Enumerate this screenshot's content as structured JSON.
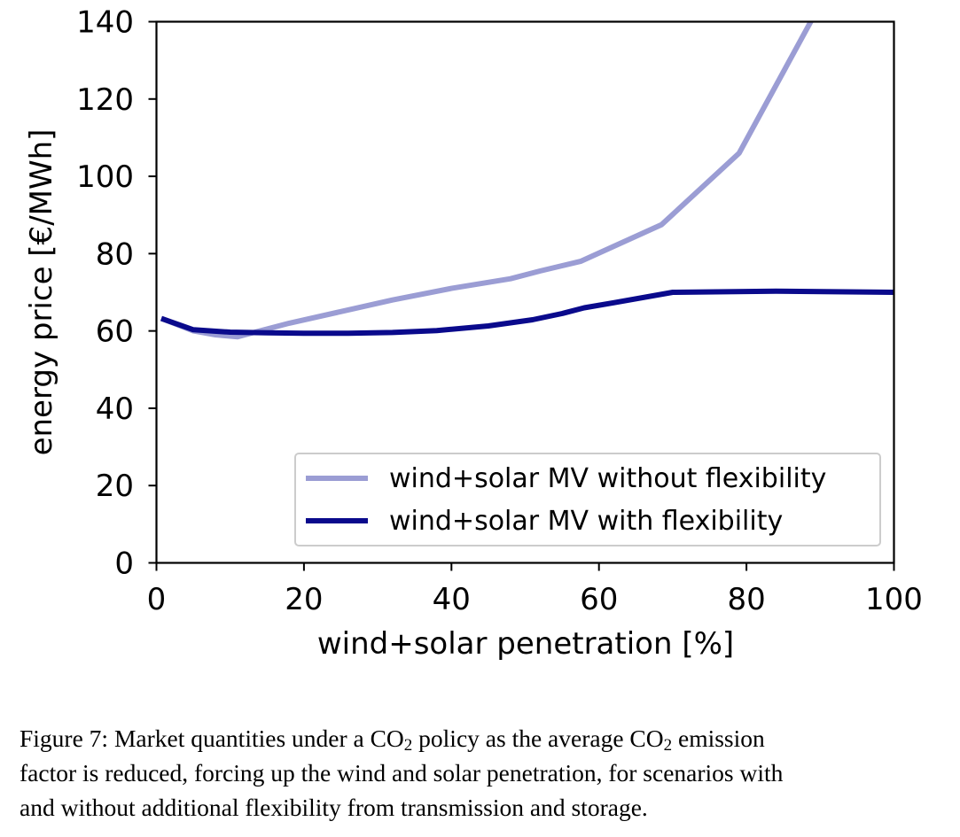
{
  "chart_data": {
    "type": "line",
    "title": "",
    "xlabel": "wind+solar penetration [%]",
    "ylabel": "energy price [€/MWh]",
    "xlim": [
      0,
      100
    ],
    "ylim": [
      0,
      140
    ],
    "xticks": [
      0,
      20,
      40,
      60,
      80,
      100
    ],
    "yticks": [
      0,
      20,
      40,
      60,
      80,
      100,
      120,
      140
    ],
    "grid": false,
    "legend_position": "lower-right",
    "series": [
      {
        "name": "wind+solar MV without flexibility",
        "color": "#9b9dd4",
        "x": [
          1,
          5,
          8,
          11,
          14,
          18,
          25,
          32,
          40,
          48,
          52,
          57.5,
          68.5,
          79,
          89
        ],
        "y": [
          63,
          60,
          59,
          58.5,
          60,
          62,
          65,
          68,
          71,
          73.5,
          75.5,
          78,
          87.5,
          106,
          141
        ]
      },
      {
        "name": "wind+solar MV with flexibility",
        "color": "#0a0a8c",
        "x": [
          1,
          5,
          10,
          15,
          20,
          26,
          32,
          38,
          45,
          51,
          55,
          58,
          62,
          70,
          84,
          100
        ],
        "y": [
          63,
          60.3,
          59.7,
          59.5,
          59.4,
          59.4,
          59.6,
          60.1,
          61.3,
          62.9,
          64.5,
          66,
          67.3,
          70,
          70.3,
          70
        ]
      }
    ]
  },
  "caption": {
    "lines": [
      [
        "Figure 7:  Market quantities under a CO",
        "2",
        " policy as the average CO",
        "2",
        " emission"
      ],
      [
        "factor is reduced, forcing up the wind and solar penetration, for scenarios with"
      ],
      [
        "and without additional flexibility from transmission and storage."
      ]
    ]
  }
}
